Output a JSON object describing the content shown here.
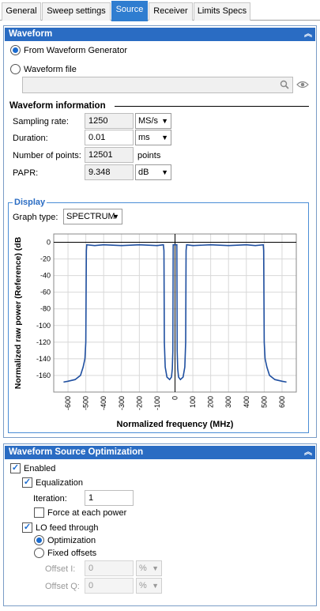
{
  "tabs": [
    {
      "label": "General"
    },
    {
      "label": "Sweep settings"
    },
    {
      "label": "Source"
    },
    {
      "label": "Receiver"
    },
    {
      "label": "Limits Specs"
    }
  ],
  "waveform": {
    "title": "Waveform",
    "from_generator_label": "From Waveform Generator",
    "waveform_file_label": "Waveform file",
    "file_path": "",
    "info_title": "Waveform information",
    "sampling_rate": {
      "label": "Sampling rate:",
      "value": "1250",
      "unit": "MS/s"
    },
    "duration": {
      "label": "Duration:",
      "value": "0.01",
      "unit": "ms"
    },
    "points": {
      "label": "Number of points:",
      "value": "12501",
      "unit": "points"
    },
    "papr": {
      "label": "PAPR:",
      "value": "9.348",
      "unit": "dB"
    }
  },
  "display": {
    "title": "Display",
    "graph_type_label": "Graph type:",
    "graph_type_value": "SPECTRUM"
  },
  "chart_data": {
    "type": "line",
    "xlabel": "Normalized frequency (MHz)",
    "ylabel": "Normalized raw power (Reference) (dB",
    "xlim": [
      -680,
      680
    ],
    "ylim": [
      -180,
      10
    ],
    "xticks": [
      -600,
      -500,
      -400,
      -300,
      -200,
      -100,
      0,
      100,
      200,
      300,
      400,
      500,
      600
    ],
    "yticks": [
      0,
      -20,
      -40,
      -60,
      -80,
      -100,
      -120,
      -140,
      -160
    ],
    "series": [
      {
        "color": "#1f4fa0",
        "x": [
          -625,
          -600,
          -560,
          -530,
          -515,
          -505,
          -500,
          -497,
          -495,
          -450,
          -400,
          -300,
          -200,
          -100,
          -65,
          -62,
          -60,
          -55,
          -45,
          -30,
          -20,
          -15,
          -12,
          -10,
          10,
          12,
          15,
          20,
          30,
          45,
          55,
          60,
          62,
          65,
          100,
          200,
          300,
          400,
          450,
          495,
          497,
          500,
          505,
          515,
          530,
          560,
          600,
          625
        ],
        "y": [
          -168,
          -167,
          -165,
          -160,
          -150,
          -140,
          -120,
          -10,
          -3,
          -4,
          -3,
          -4,
          -3,
          -4,
          -3,
          -10,
          -120,
          -150,
          -162,
          -165,
          -162,
          -152,
          -130,
          -3,
          -3,
          -130,
          -152,
          -162,
          -165,
          -162,
          -150,
          -120,
          -10,
          -3,
          -4,
          -3,
          -4,
          -3,
          -4,
          -3,
          -10,
          -120,
          -140,
          -150,
          -160,
          -165,
          -167,
          -168
        ]
      }
    ]
  },
  "optimization": {
    "title": "Waveform Source Optimization",
    "enabled_label": "Enabled",
    "equalization_label": "Equalization",
    "iteration_label": "Iteration:",
    "iteration_value": "1",
    "force_label": "Force at each power",
    "lo_label": "LO feed through",
    "optimization_label": "Optimization",
    "fixed_label": "Fixed offsets",
    "offset_i_label": "Offset I:",
    "offset_i_value": "0",
    "offset_q_label": "Offset Q:",
    "offset_q_value": "0",
    "offset_unit": "%"
  }
}
